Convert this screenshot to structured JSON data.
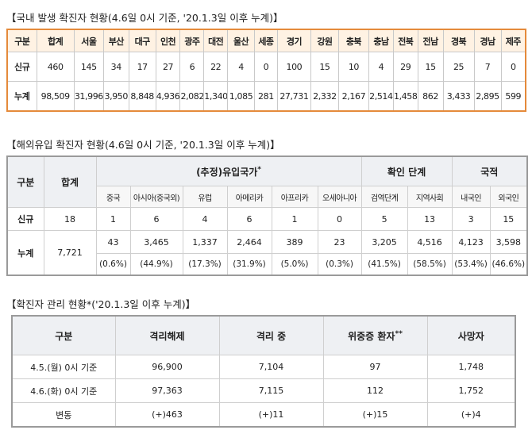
{
  "domestic": {
    "title": "【국내 발생 확진자 현황(4.6일 0시 기준, '20.1.3일 이후 누계)】",
    "headers": [
      "구분",
      "합계",
      "서울",
      "부산",
      "대구",
      "인천",
      "광주",
      "대전",
      "울산",
      "세종",
      "경기",
      "강원",
      "충북",
      "충남",
      "전북",
      "전남",
      "경북",
      "경남",
      "제주"
    ],
    "rows": [
      {
        "label": "신규",
        "values": [
          "460",
          "145",
          "34",
          "17",
          "27",
          "6",
          "22",
          "4",
          "0",
          "100",
          "15",
          "10",
          "4",
          "29",
          "15",
          "25",
          "7",
          "0"
        ]
      },
      {
        "label": "누계",
        "values": [
          "98,509",
          "31,996",
          "3,950",
          "8,848",
          "4,936",
          "2,082",
          "1,340",
          "1,085",
          "281",
          "27,731",
          "2,332",
          "2,167",
          "2,514",
          "1,458",
          "862",
          "3,433",
          "2,895",
          "599"
        ]
      }
    ]
  },
  "overseas": {
    "title": "【해외유입 확진자 현황(4.6일 0시 기준, '20.1.3일 이후 누계)】",
    "header_category": "구분",
    "header_total": "합계",
    "group_inflow": "(추정)유입국가",
    "group_inflow_mark": "*",
    "group_confirm": "확인 단계",
    "group_nationality": "국적",
    "sub_headers": [
      "중국",
      "아시아(중국외)",
      "유럽",
      "아메리카",
      "아프리카",
      "오세아니아",
      "검역단계",
      "지역사회",
      "내국인",
      "외국인"
    ],
    "new": {
      "label": "신규",
      "total": "18",
      "values": [
        "1",
        "6",
        "4",
        "6",
        "1",
        "0",
        "5",
        "13",
        "3",
        "15"
      ]
    },
    "cumulative": {
      "label": "누계",
      "total": "7,721",
      "values": [
        "43",
        "3,465",
        "1,337",
        "2,464",
        "389",
        "23",
        "3,205",
        "4,516",
        "4,123",
        "3,598"
      ],
      "percents": [
        "(0.6%)",
        "(44.9%)",
        "(17.3%)",
        "(31.9%)",
        "(5.0%)",
        "(0.3%)",
        "(41.5%)",
        "(58.5%)",
        "(53.4%)",
        "(46.6%)"
      ]
    }
  },
  "management": {
    "title": "【확진자 관리 현황*('20.1.3일 이후 누계)】",
    "headers": {
      "category": "구분",
      "released": "격리해제",
      "isolated": "격리 중",
      "critical": "위중증 환자",
      "critical_mark": "**",
      "deaths": "사망자"
    },
    "rows": [
      {
        "label": "4.5.(월) 0시 기준",
        "values": [
          "96,900",
          "7,104",
          "97",
          "1,748"
        ]
      },
      {
        "label": "4.6.(화) 0시 기준",
        "values": [
          "97,363",
          "7,115",
          "112",
          "1,752"
        ]
      },
      {
        "label": "변동",
        "values": [
          "(+)463",
          "(+)11",
          "(+)15",
          "(+)4"
        ]
      }
    ]
  }
}
